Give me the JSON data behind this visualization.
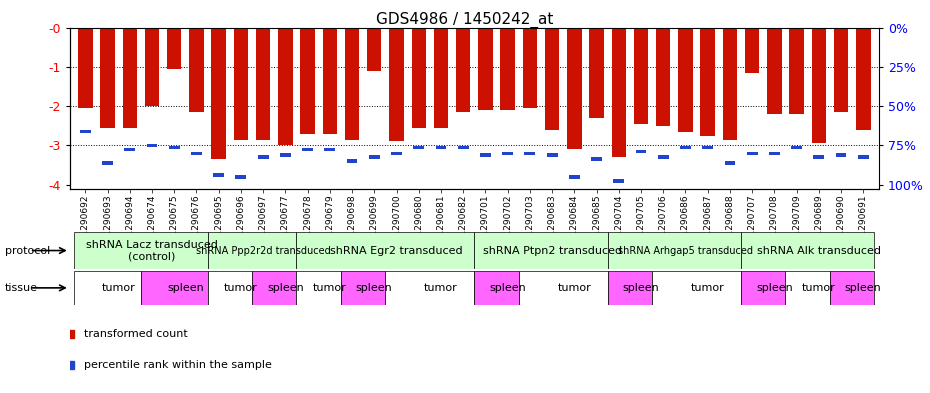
{
  "title": "GDS4986 / 1450242_at",
  "samples": [
    "GSM1290692",
    "GSM1290693",
    "GSM1290694",
    "GSM1290674",
    "GSM1290675",
    "GSM1290676",
    "GSM1290695",
    "GSM1290696",
    "GSM1290697",
    "GSM1290677",
    "GSM1290678",
    "GSM1290679",
    "GSM1290698",
    "GSM1290699",
    "GSM1290700",
    "GSM1290680",
    "GSM1290681",
    "GSM1290682",
    "GSM1290701",
    "GSM1290702",
    "GSM1290703",
    "GSM1290683",
    "GSM1290684",
    "GSM1290685",
    "GSM1290704",
    "GSM1290705",
    "GSM1290706",
    "GSM1290686",
    "GSM1290687",
    "GSM1290688",
    "GSM1290707",
    "GSM1290708",
    "GSM1290709",
    "GSM1290689",
    "GSM1290690",
    "GSM1290691"
  ],
  "bar_values": [
    -2.05,
    -2.55,
    -2.55,
    -2.0,
    -1.05,
    -2.15,
    -3.35,
    -2.85,
    -2.85,
    -3.0,
    -2.7,
    -2.7,
    -2.85,
    -1.1,
    -2.9,
    -2.55,
    -2.55,
    -2.15,
    -2.1,
    -2.1,
    -2.05,
    -2.6,
    -3.1,
    -2.3,
    -3.3,
    -2.45,
    -2.5,
    -2.65,
    -2.75,
    -2.85,
    -1.15,
    -2.2,
    -2.2,
    -2.95,
    -2.15,
    -2.6
  ],
  "percentile_values": [
    -2.65,
    -3.45,
    -3.1,
    -3.0,
    -3.05,
    -3.2,
    -3.75,
    -3.8,
    -3.3,
    -3.25,
    -3.1,
    -3.1,
    -3.4,
    -3.3,
    -3.2,
    -3.05,
    -3.05,
    -3.05,
    -3.25,
    -3.2,
    -3.2,
    -3.25,
    -3.8,
    -3.35,
    -3.9,
    -3.15,
    -3.3,
    -3.05,
    -3.05,
    -3.45,
    -3.2,
    -3.2,
    -3.05,
    -3.3,
    -3.25,
    -3.3
  ],
  "protocols": [
    {
      "label": "shRNA Lacz transduced\n(control)",
      "start": 0,
      "end": 6,
      "color": "#ccffcc",
      "fontsize": 8
    },
    {
      "label": "shRNA Ppp2r2d transduced",
      "start": 6,
      "end": 10,
      "color": "#ccffcc",
      "fontsize": 7
    },
    {
      "label": "shRNA Egr2 transduced",
      "start": 10,
      "end": 18,
      "color": "#ccffcc",
      "fontsize": 8
    },
    {
      "label": "shRNA Ptpn2 transduced",
      "start": 18,
      "end": 24,
      "color": "#ccffcc",
      "fontsize": 8
    },
    {
      "label": "shRNA Arhgap5 transduced",
      "start": 24,
      "end": 30,
      "color": "#ccffcc",
      "fontsize": 7
    },
    {
      "label": "shRNA Alk transduced",
      "start": 30,
      "end": 36,
      "color": "#ccffcc",
      "fontsize": 8
    }
  ],
  "tissues": [
    {
      "label": "tumor",
      "start": 0,
      "end": 3,
      "color": "white"
    },
    {
      "label": "spleen",
      "start": 3,
      "end": 6,
      "color": "#ff66ff"
    },
    {
      "label": "tumor",
      "start": 6,
      "end": 8,
      "color": "white"
    },
    {
      "label": "spleen",
      "start": 8,
      "end": 10,
      "color": "#ff66ff"
    },
    {
      "label": "tumor",
      "start": 10,
      "end": 12,
      "color": "white"
    },
    {
      "label": "spleen",
      "start": 12,
      "end": 14,
      "color": "#ff66ff"
    },
    {
      "label": "tumor",
      "start": 14,
      "end": 18,
      "color": "white"
    },
    {
      "label": "spleen",
      "start": 18,
      "end": 20,
      "color": "#ff66ff"
    },
    {
      "label": "tumor",
      "start": 20,
      "end": 24,
      "color": "white"
    },
    {
      "label": "spleen",
      "start": 24,
      "end": 26,
      "color": "#ff66ff"
    },
    {
      "label": "tumor",
      "start": 26,
      "end": 30,
      "color": "white"
    },
    {
      "label": "spleen",
      "start": 30,
      "end": 32,
      "color": "#ff66ff"
    },
    {
      "label": "tumor",
      "start": 32,
      "end": 34,
      "color": "white"
    },
    {
      "label": "spleen",
      "start": 34,
      "end": 36,
      "color": "#ff66ff"
    }
  ],
  "ylim": [
    -4.1,
    0
  ],
  "yticks": [
    0,
    -1,
    -2,
    -3,
    -4
  ],
  "ytick_labels": [
    "-0",
    "-1",
    "-2",
    "-3",
    "-4"
  ],
  "right_ytick_labels": [
    "0%",
    "25%",
    "50%",
    "75%",
    "100%"
  ],
  "bar_color": "#cc1100",
  "percentile_color": "#2244cc"
}
